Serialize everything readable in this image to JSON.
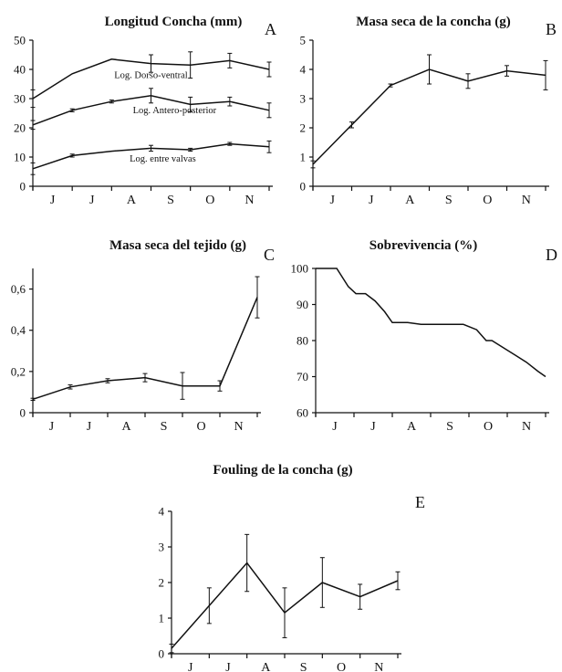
{
  "chart_data": [
    {
      "panel": "A",
      "type": "line",
      "title": "Longitud Concha (mm)",
      "categories": [
        "J",
        "J",
        "A",
        "S",
        "O",
        "N"
      ],
      "ylim": [
        0,
        50
      ],
      "yticks": [
        0,
        10,
        20,
        30,
        40,
        50
      ],
      "series": [
        {
          "name": "Log. Dorso-ventral",
          "x": [
            0,
            1,
            2,
            3,
            4,
            5,
            6
          ],
          "values": [
            30,
            38.5,
            43.5,
            42,
            41.5,
            43,
            40
          ],
          "err": [
            3,
            0,
            0,
            3,
            4.5,
            2.5,
            2.5
          ]
        },
        {
          "name": "Log. Antero-posterior",
          "x": [
            0,
            1,
            2,
            3,
            4,
            5,
            6
          ],
          "values": [
            21,
            26,
            29,
            31,
            28,
            29,
            26
          ],
          "err": [
            1.5,
            0.5,
            0.5,
            2.5,
            2.5,
            1.5,
            2.5
          ]
        },
        {
          "name": "Log. entre valvas",
          "x": [
            0,
            1,
            2,
            3,
            4,
            5,
            6
          ],
          "values": [
            6,
            10.5,
            12,
            13,
            12.5,
            14.5,
            13.5
          ],
          "err": [
            2,
            0.5,
            0,
            1,
            0.5,
            0.5,
            2
          ]
        }
      ]
    },
    {
      "panel": "B",
      "type": "line",
      "title": "Masa seca de la concha (g)",
      "categories": [
        "J",
        "J",
        "A",
        "S",
        "O",
        "N"
      ],
      "ylim": [
        0,
        5
      ],
      "yticks": [
        0,
        1,
        2,
        3,
        4,
        5
      ],
      "series": [
        {
          "x": [
            0,
            1,
            2,
            3,
            4,
            5,
            6
          ],
          "values": [
            0.75,
            2.1,
            3.45,
            4,
            3.6,
            3.95,
            3.8
          ],
          "err": [
            0.12,
            0.1,
            0.05,
            0.5,
            0.25,
            0.18,
            0.5
          ]
        }
      ]
    },
    {
      "panel": "C",
      "type": "line",
      "title": "Masa seca del tejido (g)",
      "categories": [
        "J",
        "J",
        "A",
        "S",
        "O",
        "N"
      ],
      "ylim": [
        0,
        0.7
      ],
      "yticks": [
        0,
        0.2,
        0.4,
        0.6
      ],
      "ytick_labels": [
        "0",
        "0,2",
        "0,4",
        "0,6"
      ],
      "series": [
        {
          "x": [
            0,
            1,
            2,
            3,
            4,
            5,
            6
          ],
          "values": [
            0.065,
            0.125,
            0.155,
            0.17,
            0.13,
            0.13,
            0.56
          ],
          "err": [
            0.005,
            0.01,
            0.01,
            0.02,
            0.065,
            0.025,
            0.1
          ]
        }
      ]
    },
    {
      "panel": "D",
      "type": "line",
      "title": "Sobrevivencia (%)",
      "categories": [
        "J",
        "J",
        "A",
        "S",
        "O",
        "N"
      ],
      "ylim": [
        60,
        100
      ],
      "yticks": [
        60,
        70,
        80,
        90,
        100
      ],
      "series": [
        {
          "x": [
            0,
            0.55,
            0.85,
            1.05,
            1.3,
            1.55,
            1.8,
            2.0,
            2.4,
            2.75,
            3.3,
            3.85,
            4.2,
            4.45,
            4.6,
            4.9,
            5.2,
            5.5,
            5.8,
            6.0
          ],
          "values": [
            100,
            100,
            95,
            93,
            93,
            91,
            88,
            85,
            85,
            84.5,
            84.5,
            84.5,
            83,
            80,
            80,
            78,
            76,
            74,
            71.5,
            70
          ]
        }
      ]
    },
    {
      "panel": "E",
      "type": "line",
      "title": "Fouling de la concha (g)",
      "categories": [
        "J",
        "J",
        "A",
        "S",
        "O",
        "N"
      ],
      "ylim": [
        0,
        4
      ],
      "yticks": [
        0,
        1,
        2,
        3,
        4
      ],
      "series": [
        {
          "x": [
            0,
            1,
            2,
            3,
            4,
            5,
            6
          ],
          "values": [
            0.15,
            1.35,
            2.55,
            1.15,
            2.0,
            1.6,
            2.05
          ],
          "err": [
            0.12,
            0.5,
            0.8,
            0.7,
            0.7,
            0.35,
            0.25
          ]
        }
      ]
    }
  ]
}
